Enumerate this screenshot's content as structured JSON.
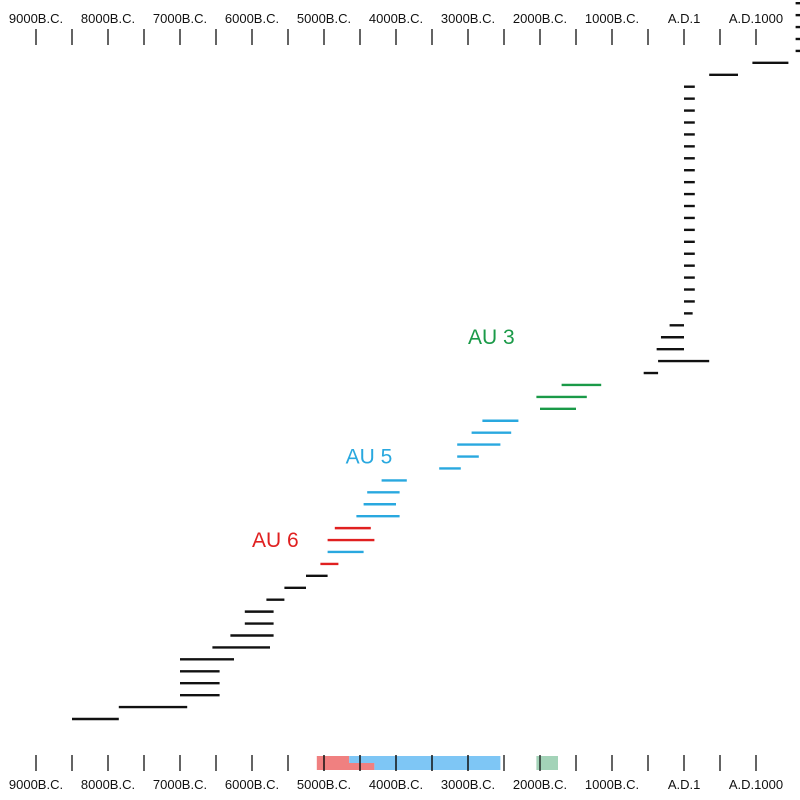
{
  "chart_data": {
    "type": "range-bar",
    "title": "",
    "xlabel": "",
    "ylabel": "",
    "x_axis": {
      "unit": "years, negative = B.C.",
      "range": [
        -9000,
        1000
      ],
      "ticks": [
        {
          "value": -9000,
          "label": "9000B.C."
        },
        {
          "value": -8000,
          "label": "8000B.C."
        },
        {
          "value": -7000,
          "label": "7000B.C."
        },
        {
          "value": -6000,
          "label": "6000B.C."
        },
        {
          "value": -5000,
          "label": "5000B.C."
        },
        {
          "value": -4000,
          "label": "4000B.C."
        },
        {
          "value": -3000,
          "label": "3000B.C."
        },
        {
          "value": -2000,
          "label": "2000B.C."
        },
        {
          "value": -1000,
          "label": "1000B.C."
        },
        {
          "value": 1,
          "label": "A.D.1"
        },
        {
          "value": 1000,
          "label": "A.D.1000"
        }
      ],
      "minor_tick_step": 500,
      "position": "top and bottom"
    },
    "group_labels": [
      {
        "text": "AU 6",
        "group": "au6",
        "at": [
          -6000,
          15
        ]
      },
      {
        "text": "AU 5",
        "group": "au5",
        "at": [
          -4700,
          22
        ]
      },
      {
        "text": "AU 3",
        "group": "au3",
        "at": [
          -3000,
          32
        ]
      }
    ],
    "colors": {
      "black": "#111111",
      "au6": "#e02020",
      "au5": "#29a8df",
      "au3": "#1a9a48",
      "summary_au6": "#f08080",
      "summary_au5": "#7ec6f5",
      "summary_au3": "#a3d3b8"
    },
    "spans": [
      {
        "start": -8500,
        "end": -7850,
        "group": "black"
      },
      {
        "start": -7850,
        "end": -6900,
        "group": "black"
      },
      {
        "start": -7000,
        "end": -6450,
        "group": "black"
      },
      {
        "start": -7000,
        "end": -6450,
        "group": "black"
      },
      {
        "start": -7000,
        "end": -6450,
        "group": "black"
      },
      {
        "start": -7000,
        "end": -6250,
        "group": "black"
      },
      {
        "start": -6550,
        "end": -5750,
        "group": "black"
      },
      {
        "start": -6300,
        "end": -5700,
        "group": "black"
      },
      {
        "start": -6100,
        "end": -5700,
        "group": "black"
      },
      {
        "start": -6100,
        "end": -5700,
        "group": "black"
      },
      {
        "start": -5800,
        "end": -5550,
        "group": "black"
      },
      {
        "start": -5550,
        "end": -5250,
        "group": "black"
      },
      {
        "start": -5250,
        "end": -4950,
        "group": "black"
      },
      {
        "start": -5050,
        "end": -4800,
        "group": "au6"
      },
      {
        "start": -4950,
        "end": -4450,
        "group": "au5"
      },
      {
        "start": -4950,
        "end": -4300,
        "group": "au6"
      },
      {
        "start": -4850,
        "end": -4350,
        "group": "au6"
      },
      {
        "start": -4550,
        "end": -3950,
        "group": "au5"
      },
      {
        "start": -4450,
        "end": -4000,
        "group": "au5"
      },
      {
        "start": -4400,
        "end": -3950,
        "group": "au5"
      },
      {
        "start": -4200,
        "end": -3850,
        "group": "au5"
      },
      {
        "start": -3400,
        "end": -3100,
        "group": "au5"
      },
      {
        "start": -3150,
        "end": -2850,
        "group": "au5"
      },
      {
        "start": -3150,
        "end": -2550,
        "group": "au5"
      },
      {
        "start": -2950,
        "end": -2400,
        "group": "au5"
      },
      {
        "start": -2800,
        "end": -2300,
        "group": "au5"
      },
      {
        "start": -2000,
        "end": -1500,
        "group": "au3"
      },
      {
        "start": -2050,
        "end": -1350,
        "group": "au3"
      },
      {
        "start": -1700,
        "end": -1150,
        "group": "au3"
      },
      {
        "start": -560,
        "end": -360,
        "group": "black"
      },
      {
        "start": -360,
        "end": 350,
        "group": "black"
      },
      {
        "start": -380,
        "end": 0,
        "group": "black"
      },
      {
        "start": -320,
        "end": 0,
        "group": "black"
      },
      {
        "start": -200,
        "end": 0,
        "group": "black"
      },
      {
        "start": 0,
        "end": 120,
        "group": "black"
      },
      {
        "start": 0,
        "end": 150,
        "group": "black"
      },
      {
        "start": 0,
        "end": 150,
        "group": "black"
      },
      {
        "start": 0,
        "end": 150,
        "group": "black"
      },
      {
        "start": 0,
        "end": 150,
        "group": "black"
      },
      {
        "start": 0,
        "end": 150,
        "group": "black"
      },
      {
        "start": 0,
        "end": 150,
        "group": "black"
      },
      {
        "start": 0,
        "end": 150,
        "group": "black"
      },
      {
        "start": 0,
        "end": 150,
        "group": "black"
      },
      {
        "start": 0,
        "end": 150,
        "group": "black"
      },
      {
        "start": 0,
        "end": 150,
        "group": "black"
      },
      {
        "start": 0,
        "end": 150,
        "group": "black"
      },
      {
        "start": 0,
        "end": 150,
        "group": "black"
      },
      {
        "start": 0,
        "end": 150,
        "group": "black"
      },
      {
        "start": 0,
        "end": 150,
        "group": "black"
      },
      {
        "start": 0,
        "end": 150,
        "group": "black"
      },
      {
        "start": 0,
        "end": 150,
        "group": "black"
      },
      {
        "start": 0,
        "end": 150,
        "group": "black"
      },
      {
        "start": 0,
        "end": 150,
        "group": "black"
      },
      {
        "start": 0,
        "end": 150,
        "group": "black"
      },
      {
        "start": 350,
        "end": 750,
        "group": "black"
      },
      {
        "start": 950,
        "end": 1450,
        "group": "black"
      },
      {
        "start": 1550,
        "end": 1700,
        "group": "black"
      },
      {
        "start": 1550,
        "end": 1700,
        "group": "black"
      },
      {
        "start": 1550,
        "end": 1700,
        "group": "black"
      },
      {
        "start": 1550,
        "end": 1700,
        "group": "black"
      },
      {
        "start": 1550,
        "end": 1700,
        "group": "black"
      },
      {
        "start": 1550,
        "end": 1700,
        "group": "black"
      }
    ],
    "summary_bar": [
      {
        "start": -5100,
        "end": -4650,
        "group": "summary_au6",
        "row": "upper"
      },
      {
        "start": -5100,
        "end": -4300,
        "group": "summary_au6",
        "row": "lower"
      },
      {
        "start": -4650,
        "end": -2550,
        "group": "summary_au5",
        "row": "upper"
      },
      {
        "start": -4300,
        "end": -2550,
        "group": "summary_au5",
        "row": "lower"
      },
      {
        "start": -2050,
        "end": -1750,
        "group": "summary_au3",
        "row": "full"
      }
    ]
  }
}
